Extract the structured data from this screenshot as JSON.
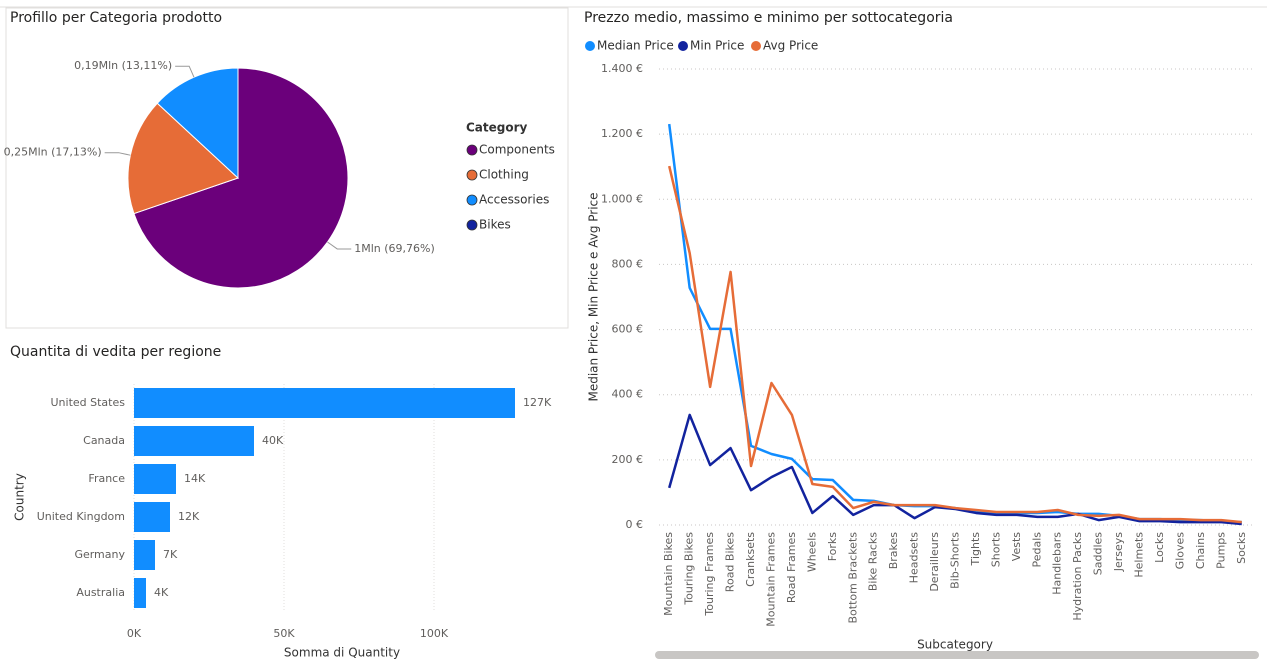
{
  "chart_data": [
    {
      "type": "pie",
      "title": "Profillo per Categoria prodotto",
      "legend_title": "Category",
      "categories": [
        "Components",
        "Clothing",
        "Accessories",
        "Bikes"
      ],
      "values": [
        69.76,
        17.13,
        13.11,
        0
      ],
      "value_labels": [
        "1Mln (69,76%)",
        "0,25Mln (17,13%)",
        "0,19Mln (13,11%)",
        null
      ],
      "colors": [
        "#6b007b",
        "#e66c37",
        "#118dff",
        "#12239e"
      ],
      "legend": "right"
    },
    {
      "type": "bar",
      "orientation": "horizontal",
      "title": "Quantita di vedita per regione",
      "xlabel": "Somma di Quantity",
      "ylabel": "Country",
      "categories": [
        "United States",
        "Canada",
        "France",
        "United Kingdom",
        "Germany",
        "Australia"
      ],
      "values": [
        127000,
        40000,
        14000,
        12000,
        7000,
        4000
      ],
      "value_labels": [
        "127K",
        "40K",
        "14K",
        "12K",
        "7K",
        "4K"
      ],
      "color": "#118dff",
      "xlim": [
        0,
        140000
      ],
      "xticks": [
        {
          "value": 0,
          "label": "0K"
        },
        {
          "value": 50000,
          "label": "50K"
        },
        {
          "value": 100000,
          "label": "100K"
        }
      ],
      "grid": true
    },
    {
      "type": "line",
      "title": "Prezzo medio, massimo e minimo per sottocategoria",
      "xlabel": "Subcategory",
      "ylabel": "Median Price, Min Price e Avg Price",
      "categories": [
        "Mountain Bikes",
        "Touring Bikes",
        "Touring Frames",
        "Road Bikes",
        "Cranksets",
        "Mountain Frames",
        "Road Frames",
        "Wheels",
        "Forks",
        "Bottom Brackets",
        "Bike Racks",
        "Brakes",
        "Headsets",
        "Derailleurs",
        "Bib-Shorts",
        "Tights",
        "Shorts",
        "Vests",
        "Pedals",
        "Handlebars",
        "Hydration Packs",
        "Saddles",
        "Jerseys",
        "Helmets",
        "Locks",
        "Gloves",
        "Chains",
        "Pumps",
        "Socks"
      ],
      "series": [
        {
          "name": "Median Price",
          "color": "#118dff",
          "values": [
            1231,
            728,
            602,
            602,
            243,
            218,
            203,
            141,
            138,
            77,
            74,
            61,
            58,
            58,
            52,
            40,
            37,
            37,
            37,
            40,
            34,
            34,
            28,
            18,
            18,
            15,
            15,
            12,
            9
          ]
        },
        {
          "name": "Min Price",
          "color": "#12239e",
          "values": [
            114,
            338,
            184,
            236,
            107,
            147,
            178,
            37,
            89,
            31,
            61,
            61,
            21,
            55,
            49,
            37,
            31,
            31,
            25,
            25,
            34,
            15,
            25,
            12,
            12,
            9,
            9,
            9,
            3
          ]
        },
        {
          "name": "Avg Price",
          "color": "#e66c37",
          "values": [
            1102,
            835,
            424,
            777,
            181,
            436,
            338,
            126,
            117,
            52,
            71,
            61,
            61,
            61,
            52,
            46,
            40,
            40,
            40,
            46,
            31,
            28,
            31,
            18,
            18,
            18,
            15,
            15,
            9
          ]
        }
      ],
      "ylim": [
        0,
        1400
      ],
      "yticks": [
        {
          "value": 0,
          "label": "0 €"
        },
        {
          "value": 200,
          "label": "200 €"
        },
        {
          "value": 400,
          "label": "400 €"
        },
        {
          "value": 600,
          "label": "600 €"
        },
        {
          "value": 800,
          "label": "800 €"
        },
        {
          "value": 1000,
          "label": "1.000 €"
        },
        {
          "value": 1200,
          "label": "1.200 €"
        },
        {
          "value": 1400,
          "label": "1.400 €"
        }
      ],
      "grid": true,
      "legend": "top-left"
    }
  ]
}
